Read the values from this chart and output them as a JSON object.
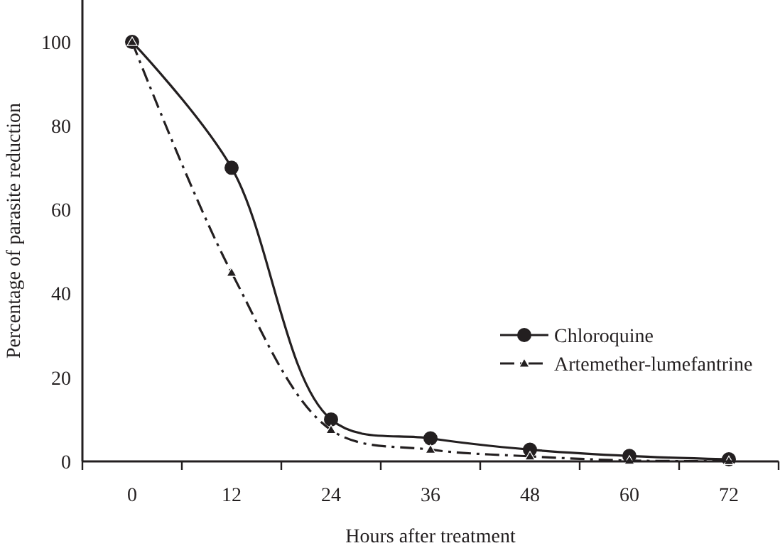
{
  "chart_data": {
    "type": "line",
    "xlabel": "Hours after treatment",
    "ylabel": "Percentage of parasite reduction",
    "x": [
      0,
      12,
      24,
      36,
      48,
      60,
      72
    ],
    "series": [
      {
        "name": "Chloroquine",
        "color": "#231f20",
        "values": [
          100,
          70,
          10,
          5.5,
          2.8,
          1.3,
          0.5
        ],
        "marker": "circle",
        "line_style": "solid"
      },
      {
        "name": "Artemether-lumefantrine",
        "color": "#231f20",
        "values": [
          100,
          45,
          7.5,
          2.8,
          1.2,
          0.2,
          0.1
        ],
        "marker": "triangle",
        "line_style": "dashed"
      }
    ],
    "xlim": [
      -6,
      78
    ],
    "xticks": [
      0,
      12,
      24,
      36,
      48,
      60,
      72,
      {
        "value": -6,
        "label": null
      },
      {
        "value": 6,
        "label": null
      },
      {
        "value": 18,
        "label": null
      },
      {
        "value": 30,
        "label": null
      },
      {
        "value": 42,
        "label": null
      },
      {
        "value": 54,
        "label": null
      },
      {
        "value": 66,
        "label": null
      },
      {
        "value": 78,
        "label": null
      }
    ],
    "ylim": [
      0,
      110
    ],
    "yticks": [
      0,
      20,
      40,
      60,
      80,
      100
    ],
    "grid": false,
    "legend": "right"
  }
}
